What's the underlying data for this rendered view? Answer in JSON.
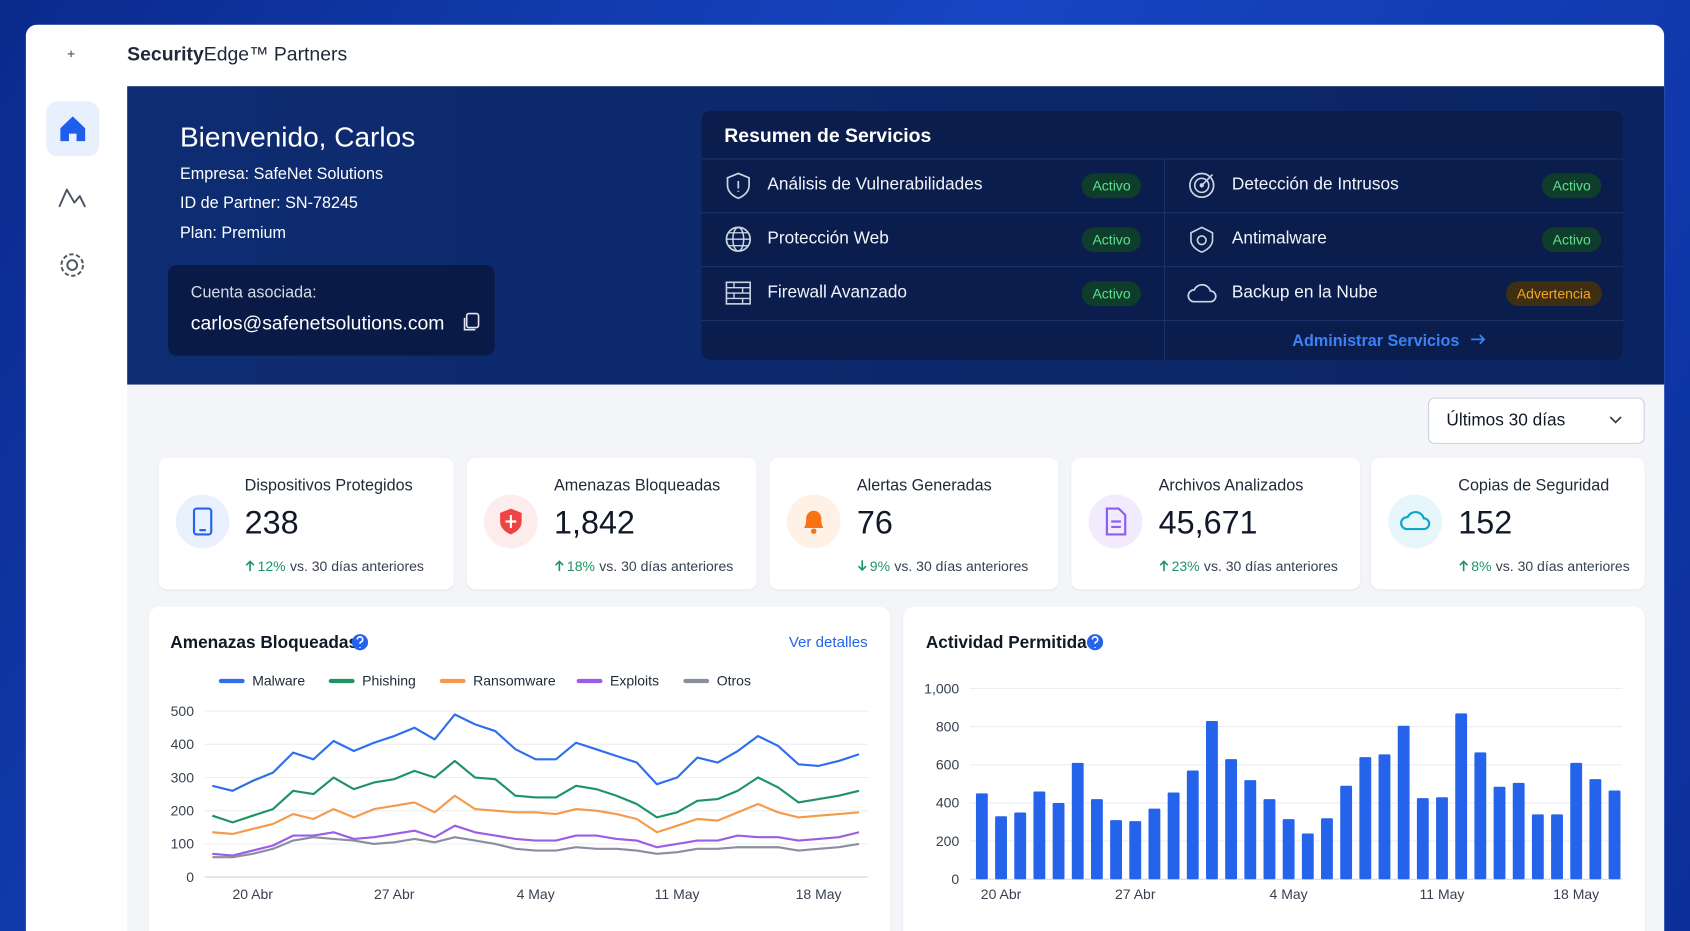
{
  "brand": {
    "strong": "Security",
    "rest": "Edge™ Partners"
  },
  "welcome": {
    "title": "Bienvenido, Carlos",
    "company": "Empresa: SafeNet Solutions",
    "partner_id": "ID de Partner: SN-78245",
    "plan": "Plan: Premium",
    "account_label": "Cuenta asociada:",
    "account_email": "carlos@safenetsolutions.com"
  },
  "services": {
    "title": "Resumen de Servicios",
    "items": [
      {
        "name": "Análisis de Vulnerabilidades",
        "status": "Activo"
      },
      {
        "name": "Protección Web",
        "status": "Activo"
      },
      {
        "name": "Firewall Avanzado",
        "status": "Activo"
      },
      {
        "name": "Detección de Intrusos",
        "status": "Activo"
      },
      {
        "name": "Antimalware",
        "status": "Activo"
      },
      {
        "name": "Backup en la Nube",
        "status": "Advertencia"
      }
    ],
    "link": "Administrar Servicios"
  },
  "period": "Últimos 30 días",
  "kpis": [
    {
      "label": "Dispositivos Protegidos",
      "value": "238",
      "change": "12%",
      "note": "vs. 30 días anteriores"
    },
    {
      "label": "Amenazas Bloqueadas",
      "value": "1,842",
      "change": "18%",
      "note": "vs. 30 días anteriores"
    },
    {
      "label": "Alertas Generadas",
      "value": "76",
      "change": "9%",
      "note": "vs. 30 días anteriores"
    },
    {
      "label": "Archivos Analizados",
      "value": "45,671",
      "change": "23%",
      "note": "vs. 30 días anteriores"
    },
    {
      "label": "Copias de Seguridad",
      "value": "152",
      "change": "8%",
      "note": "vs. 30 días anteriores"
    }
  ],
  "chart_data": [
    {
      "type": "line",
      "title": "Amenazas Bloqueadas",
      "link": "Ver detalles",
      "categories": [
        null,
        null,
        "20 Abr",
        null,
        null,
        null,
        null,
        null,
        null,
        "27 Abr",
        null,
        null,
        null,
        null,
        null,
        null,
        "4 May",
        null,
        null,
        null,
        null,
        null,
        null,
        "11 May",
        null,
        null,
        null,
        null,
        null,
        null,
        "18 May",
        null,
        null
      ],
      "series": [
        {
          "name": "Malware",
          "color": "#2f6fed",
          "values": [
            275,
            260,
            290,
            315,
            375,
            355,
            410,
            380,
            405,
            425,
            450,
            415,
            490,
            460,
            440,
            385,
            355,
            355,
            405,
            385,
            365,
            345,
            280,
            300,
            360,
            345,
            380,
            425,
            395,
            340,
            335,
            350,
            370
          ]
        },
        {
          "name": "Phishing",
          "color": "#1e9464",
          "values": [
            185,
            165,
            185,
            205,
            260,
            250,
            300,
            265,
            285,
            295,
            320,
            300,
            350,
            300,
            295,
            245,
            240,
            240,
            275,
            265,
            245,
            220,
            180,
            195,
            230,
            235,
            260,
            300,
            270,
            225,
            235,
            245,
            260
          ]
        },
        {
          "name": "Ransomware",
          "color": "#f59a4a",
          "values": [
            135,
            130,
            145,
            160,
            190,
            175,
            205,
            180,
            205,
            215,
            225,
            195,
            245,
            205,
            200,
            195,
            195,
            190,
            205,
            200,
            190,
            175,
            135,
            155,
            175,
            170,
            195,
            220,
            195,
            180,
            185,
            190,
            195
          ]
        },
        {
          "name": "Exploits",
          "color": "#9b5de5",
          "values": [
            70,
            65,
            80,
            95,
            125,
            125,
            135,
            115,
            120,
            130,
            140,
            120,
            155,
            135,
            125,
            115,
            110,
            110,
            125,
            125,
            115,
            110,
            90,
            100,
            110,
            110,
            125,
            120,
            120,
            110,
            115,
            120,
            135
          ]
        },
        {
          "name": "Otros",
          "color": "#8a8fa0",
          "values": [
            60,
            60,
            70,
            85,
            110,
            120,
            115,
            110,
            100,
            105,
            115,
            105,
            120,
            110,
            100,
            85,
            80,
            80,
            90,
            85,
            85,
            80,
            70,
            75,
            85,
            85,
            90,
            90,
            90,
            80,
            85,
            90,
            100
          ]
        }
      ],
      "ylim": [
        0,
        500
      ],
      "yticks": [
        0,
        100,
        200,
        300,
        400,
        500
      ],
      "grid": true
    },
    {
      "type": "bar",
      "title": "Actividad Permitida",
      "categories": [
        null,
        "20 Abr",
        null,
        null,
        null,
        null,
        null,
        null,
        "27 Abr",
        null,
        null,
        null,
        null,
        null,
        null,
        null,
        "4 May",
        null,
        null,
        null,
        null,
        null,
        null,
        null,
        "11 May",
        null,
        null,
        null,
        null,
        null,
        null,
        "18 May",
        null,
        null
      ],
      "values": [
        450,
        330,
        350,
        460,
        400,
        610,
        420,
        310,
        305,
        370,
        455,
        570,
        830,
        630,
        520,
        420,
        315,
        240,
        320,
        490,
        640,
        655,
        805,
        425,
        430,
        870,
        665,
        485,
        505,
        340,
        340,
        610,
        525,
        465
      ],
      "color": "#2563eb",
      "ylim": [
        0,
        1000
      ],
      "yticks": [
        0,
        200,
        400,
        600,
        800,
        {
          "value": 1000,
          "label": "1,000"
        }
      ],
      "grid": true
    }
  ]
}
